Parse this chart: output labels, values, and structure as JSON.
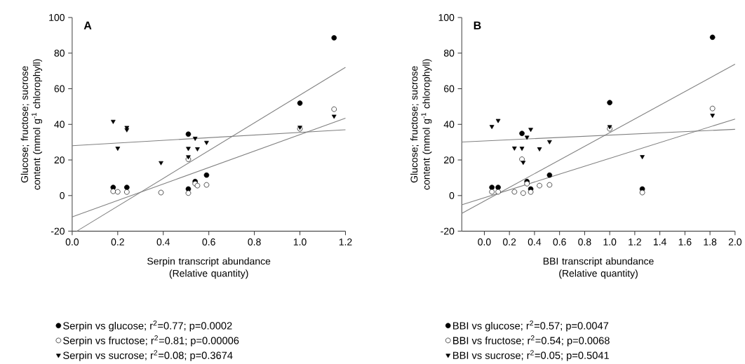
{
  "chart_data": [
    {
      "type": "scatter",
      "title": "A",
      "xlabel": "Serpin transcript abundance (Relative quantity)",
      "ylabel": "Glucose; fructose; sucrose content (mmol g$^{-1}$ chlorophyll)",
      "xlim": [
        0,
        1.2
      ],
      "ylim": [
        -20,
        100
      ],
      "xticks": [
        {
          "value": 0,
          "label": "0.0"
        },
        0.2,
        0.4,
        0.6,
        0.8,
        {
          "value": 1,
          "label": "1.0"
        },
        1.2
      ],
      "yticks": [
        -20,
        0,
        20,
        40,
        60,
        80,
        100
      ],
      "grid": false,
      "legend": "bottom",
      "series": [
        {
          "name": "Serpin vs glucose; r$^{2}$=0.77; p=0.0002",
          "color": "#000000",
          "marker": "circle",
          "x": [
            0.18,
            0.24,
            0.51,
            0.51,
            0.54,
            0.59,
            1.0,
            1.15
          ],
          "values": [
            4.6,
            4.6,
            3.7,
            34.5,
            7.9,
            11.5,
            51.9,
            88.6
          ]
        },
        {
          "name": "Serpin vs fructose; r$^{2}$=0.81; p=0.00006",
          "color": "#ffffff",
          "marker": "circle",
          "x": [
            0.18,
            0.2,
            0.24,
            0.39,
            0.51,
            0.51,
            0.54,
            0.55,
            0.59,
            1.0,
            1.15
          ],
          "values": [
            2.4,
            2.1,
            2.0,
            1.7,
            1.4,
            20.4,
            6.7,
            5.6,
            6.0,
            37.5,
            48.5
          ]
        },
        {
          "name": "Serpin vs sucrose; r$^{2}$=0.08; p=0.3674",
          "color": "#000000",
          "marker": "triangle",
          "x": [
            0.18,
            0.2,
            0.24,
            0.24,
            0.39,
            0.51,
            0.51,
            0.54,
            0.55,
            0.59,
            1.0,
            1.15
          ],
          "values": [
            41.7,
            26.6,
            38.3,
            37.0,
            18.5,
            21.8,
            26.5,
            32.2,
            26.3,
            29.9,
            38.4,
            44.6
          ]
        },
        {
          "type": "line",
          "color": "#808080",
          "marker": "none",
          "x": [
            0.02,
            1.2
          ],
          "values": [
            -20,
            72
          ]
        },
        {
          "type": "line",
          "color": "#808080",
          "marker": "none",
          "x": [
            0,
            1.2
          ],
          "values": [
            -12,
            43.5
          ]
        },
        {
          "type": "line",
          "color": "#808080",
          "marker": "none",
          "x": [
            0,
            1.2
          ],
          "values": [
            28,
            37
          ]
        }
      ]
    },
    {
      "type": "scatter",
      "title": "B",
      "xlabel": "BBI transcript abundance (Relative quantity)",
      "ylabel": "Glucose; fructose; sucrose content (mmol g$^{-1}$ chlorophyll)",
      "xlim": [
        -0.18,
        2.0
      ],
      "ylim": [
        -20,
        100
      ],
      "xticks": [
        {
          "value": 0,
          "label": "0.0"
        },
        0.2,
        0.4,
        0.6,
        0.8,
        {
          "value": 1,
          "label": "1.0"
        },
        1.2,
        1.4,
        1.6,
        1.8,
        {
          "value": 2,
          "label": "2.0"
        }
      ],
      "yticks": [
        -20,
        0,
        20,
        40,
        60,
        80,
        100
      ],
      "grid": false,
      "legend": "bottom",
      "series": [
        {
          "name": "BBI vs glucose; r$^{2}$=0.57; p=0.0047",
          "color": "#000000",
          "marker": "circle",
          "x": [
            0.06,
            0.11,
            0.3,
            0.34,
            0.37,
            0.52,
            1.0,
            1.26,
            1.82
          ],
          "values": [
            4.6,
            4.6,
            34.9,
            7.9,
            3.7,
            11.5,
            52.2,
            3.7,
            88.9
          ]
        },
        {
          "name": "BBI vs fructose; r$^{2}$=0.54; p=0.0068",
          "color": "#ffffff",
          "marker": "circle",
          "x": [
            0.06,
            0.11,
            0.24,
            0.3,
            0.31,
            0.34,
            0.37,
            0.44,
            0.52,
            1.0,
            1.26,
            1.82
          ],
          "values": [
            2.1,
            2.1,
            2.1,
            20.4,
            1.4,
            6.7,
            2.0,
            5.6,
            6.0,
            37.5,
            1.7,
            48.9
          ]
        },
        {
          "name": "BBI vs sucrose; r$^{2}$=0.05; p=0.5041",
          "color": "#000000",
          "marker": "triangle",
          "x": [
            0.06,
            0.11,
            0.24,
            0.3,
            0.31,
            0.34,
            0.37,
            0.44,
            0.52,
            1.0,
            1.26,
            1.82
          ],
          "values": [
            38.8,
            42.2,
            26.7,
            26.6,
            18.7,
            32.8,
            37.2,
            26.3,
            30.3,
            38.7,
            21.9,
            45.1
          ]
        },
        {
          "type": "line",
          "color": "#808080",
          "marker": "none",
          "x": [
            -0.18,
            2.0
          ],
          "values": [
            -10,
            73.8
          ]
        },
        {
          "type": "line",
          "color": "#808080",
          "marker": "none",
          "x": [
            -0.18,
            2.0
          ],
          "values": [
            -5.2,
            43
          ]
        },
        {
          "type": "line",
          "color": "#808080",
          "marker": "none",
          "x": [
            -0.18,
            2.0
          ],
          "values": [
            30.1,
            37.2
          ]
        }
      ]
    }
  ]
}
